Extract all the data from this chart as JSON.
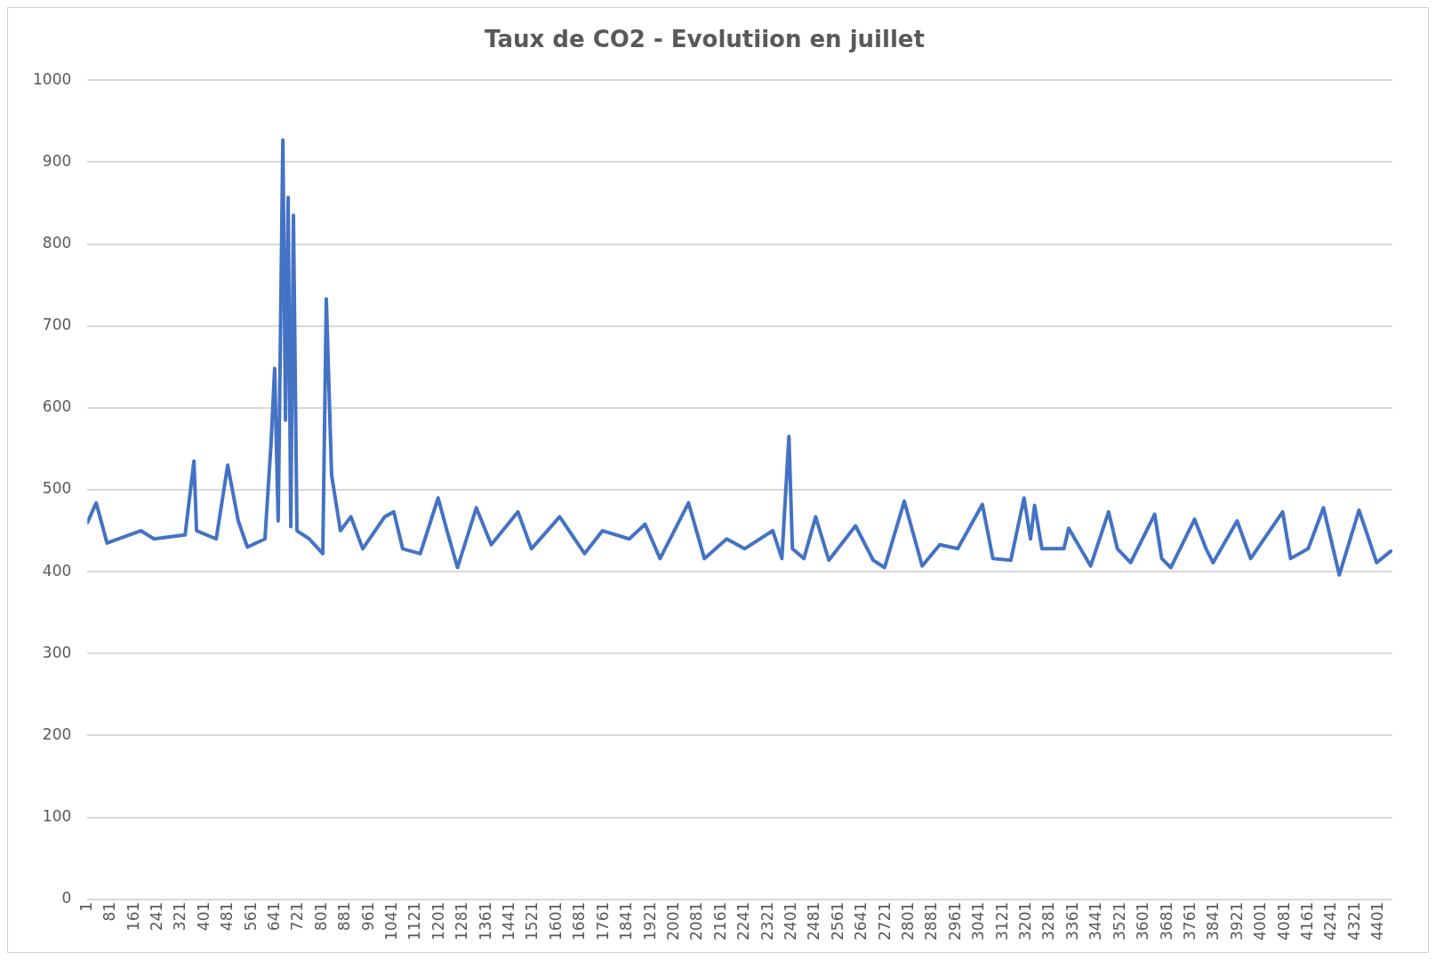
{
  "chart_data": {
    "type": "line",
    "title": "Taux de CO2 - Evolutiion en juillet",
    "xlim": [
      1,
      4447
    ],
    "xticks": [
      1,
      81,
      161,
      241,
      321,
      401,
      481,
      561,
      641,
      721,
      801,
      881,
      961,
      1041,
      1121,
      1201,
      1281,
      1361,
      1441,
      1521,
      1601,
      1681,
      1761,
      1841,
      1921,
      2001,
      2081,
      2161,
      2241,
      2321,
      2401,
      2481,
      2561,
      2641,
      2721,
      2801,
      2881,
      2961,
      3041,
      3121,
      3201,
      3281,
      3361,
      3441,
      3521,
      3601,
      3681,
      3761,
      3841,
      3921,
      4001,
      4081,
      4161,
      4241,
      4321,
      4401
    ],
    "ylim": [
      0,
      1000
    ],
    "yticks": [
      0,
      100,
      200,
      300,
      400,
      500,
      600,
      700,
      800,
      900,
      1000
    ],
    "grid": "y",
    "legend": false,
    "marker": "none",
    "line_style": "solid",
    "series": [
      {
        "color": "#4472c4",
        "x": [
          1,
          31,
          68,
          183,
          228,
          334,
          364,
          373,
          440,
          479,
          515,
          546,
          606,
          627,
          639,
          651,
          667,
          676,
          685,
          694,
          703,
          715,
          757,
          803,
          815,
          833,
          863,
          899,
          939,
          1014,
          1045,
          1075,
          1135,
          1196,
          1226,
          1262,
          1326,
          1377,
          1468,
          1514,
          1610,
          1695,
          1756,
          1847,
          1901,
          1952,
          2049,
          2103,
          2179,
          2240,
          2336,
          2367,
          2391,
          2403,
          2442,
          2482,
          2527,
          2618,
          2678,
          2717,
          2784,
          2845,
          2905,
          2966,
          3050,
          3086,
          3147,
          3192,
          3214,
          3228,
          3253,
          3328,
          3344,
          3419,
          3480,
          3510,
          3555,
          3637,
          3661,
          3692,
          3773,
          3812,
          3836,
          3918,
          3964,
          4073,
          4100,
          4160,
          4212,
          4266,
          4333,
          4357,
          4393,
          4441
        ],
        "values": [
          460,
          484,
          435,
          450,
          440,
          445,
          535,
          450,
          440,
          530,
          462,
          430,
          440,
          558,
          648,
          462,
          927,
          585,
          857,
          455,
          835,
          450,
          440,
          422,
          733,
          518,
          450,
          467,
          428,
          467,
          473,
          428,
          422,
          490,
          450,
          405,
          478,
          433,
          473,
          428,
          467,
          422,
          450,
          440,
          458,
          416,
          484,
          416,
          440,
          428,
          450,
          416,
          565,
          428,
          416,
          467,
          414,
          456,
          414,
          405,
          486,
          407,
          433,
          428,
          482,
          416,
          414,
          490,
          440,
          481,
          428,
          428,
          453,
          407,
          473,
          428,
          411,
          470,
          416,
          405,
          464,
          428,
          411,
          462,
          416,
          473,
          416,
          428,
          478,
          396,
          475,
          450,
          411,
          425
        ]
      }
    ]
  }
}
